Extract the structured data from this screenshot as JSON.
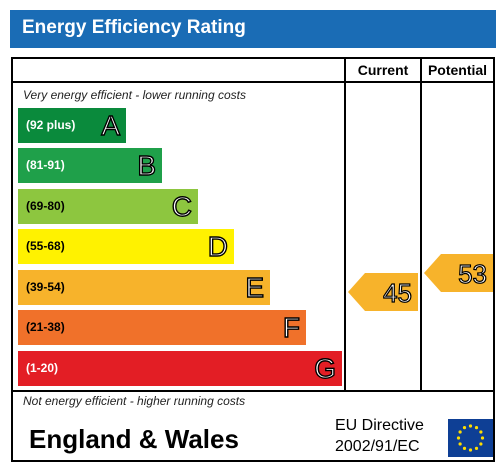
{
  "title": "Energy Efficiency Rating",
  "columns": {
    "current": "Current",
    "potential": "Potential"
  },
  "top_caption": "Very energy efficient - lower running costs",
  "bottom_caption": "Not energy efficient - higher running costs",
  "bands": [
    {
      "range": "(92 plus)",
      "letter": "A",
      "color": "#0a8a3c",
      "range_color": "#ffffff"
    },
    {
      "range": "(81-91)",
      "letter": "B",
      "color": "#1fa04a",
      "range_color": "#ffffff"
    },
    {
      "range": "(69-80)",
      "letter": "C",
      "color": "#8dc63f",
      "range_color": "#000000"
    },
    {
      "range": "(55-68)",
      "letter": "D",
      "color": "#fff200",
      "range_color": "#000000"
    },
    {
      "range": "(39-54)",
      "letter": "E",
      "color": "#f7b32b",
      "range_color": "#000000"
    },
    {
      "range": "(21-38)",
      "letter": "F",
      "color": "#f0712a",
      "range_color": "#000000"
    },
    {
      "range": "(1-20)",
      "letter": "G",
      "color": "#e31e25",
      "range_color": "#ffffff"
    }
  ],
  "current": {
    "value": "45",
    "color": "#f7b32b"
  },
  "potential": {
    "value": "53",
    "color": "#f7b32b"
  },
  "footer": {
    "country": "England & Wales",
    "directive_line1": "EU Directive",
    "directive_line2": "2002/91/EC"
  },
  "icons": {
    "flag": "eu-flag-icon"
  },
  "colors": {
    "title_bar": "#1a6cb5",
    "flag": "#0e3f95",
    "stars": "#ffdd00"
  }
}
